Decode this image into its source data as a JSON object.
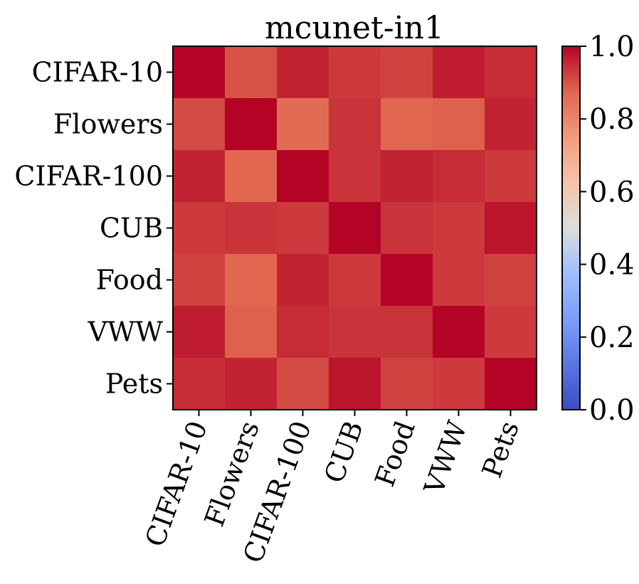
{
  "chart_data": {
    "type": "heatmap",
    "title": "mcunet-in1",
    "xlabel": "",
    "ylabel": "",
    "row_labels": [
      "CIFAR-10",
      "Flowers",
      "CIFAR-100",
      "CUB",
      "Food",
      "VWW",
      "Pets"
    ],
    "col_labels": [
      "CIFAR-10",
      "Flowers",
      "CIFAR-100",
      "CUB",
      "Food",
      "VWW",
      "Pets"
    ],
    "values": [
      [
        1.0,
        0.9,
        0.96,
        0.93,
        0.92,
        0.97,
        0.95
      ],
      [
        0.91,
        1.0,
        0.86,
        0.94,
        0.87,
        0.88,
        0.96
      ],
      [
        0.96,
        0.87,
        1.0,
        0.94,
        0.96,
        0.95,
        0.93
      ],
      [
        0.93,
        0.94,
        0.93,
        1.0,
        0.94,
        0.93,
        0.98
      ],
      [
        0.92,
        0.87,
        0.96,
        0.93,
        1.0,
        0.93,
        0.92
      ],
      [
        0.97,
        0.88,
        0.95,
        0.94,
        0.94,
        1.0,
        0.93
      ],
      [
        0.95,
        0.96,
        0.91,
        0.98,
        0.92,
        0.93,
        1.0
      ]
    ],
    "colormap": "coolwarm",
    "vmin": 0.0,
    "vmax": 1.0,
    "colorbar_ticks": [
      "0.0",
      "0.2",
      "0.4",
      "0.6",
      "0.8",
      "1.0"
    ],
    "colorbar_tick_values": [
      0.0,
      0.2,
      0.4,
      0.6,
      0.8,
      1.0
    ]
  }
}
